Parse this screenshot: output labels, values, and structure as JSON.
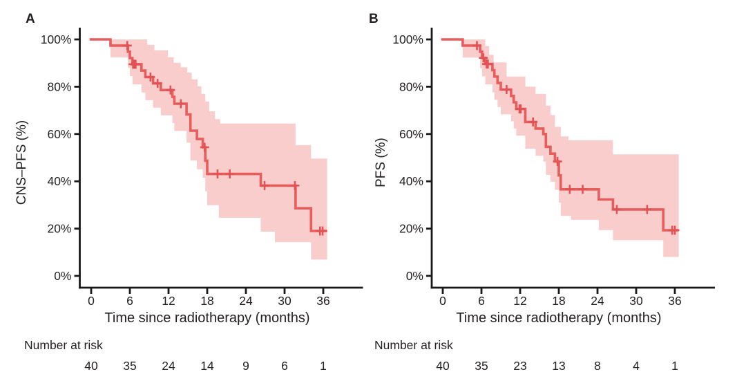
{
  "colors": {
    "curve": "#e75d5c",
    "censor": "#e25254",
    "band": "#f9cdcb",
    "axis": "#1a1a1a",
    "text": "#231f20",
    "background": "#ffffff"
  },
  "chart_data": [
    {
      "type": "line",
      "subtype": "kaplan_meier_step",
      "title": "A",
      "xlabel": "Time since radiotherapy (months)",
      "ylabel": "CNS–PFS (%)",
      "xlim": [
        0,
        42
      ],
      "ylim": [
        0,
        100
      ],
      "x_ticks": [
        0,
        6,
        12,
        18,
        24,
        30,
        36
      ],
      "y_ticks": [
        0,
        20,
        40,
        60,
        80,
        100
      ],
      "y_tick_suffix": "%",
      "grid": false,
      "legend": null,
      "series": [
        {
          "name": "CNS-PFS",
          "color": "#e75d5c",
          "ci_color": "#f9cdcb",
          "steps": [
            [
              0,
              100
            ],
            [
              3.0,
              97.4
            ],
            [
              5.7,
              94.8
            ],
            [
              6.0,
              92.1
            ],
            [
              6.4,
              89.5
            ],
            [
              7.8,
              86.8
            ],
            [
              8.4,
              84.1
            ],
            [
              9.6,
              81.4
            ],
            [
              10.8,
              78.6
            ],
            [
              12.6,
              75.7
            ],
            [
              12.9,
              72.8
            ],
            [
              14.8,
              68.3
            ],
            [
              15.4,
              61.4
            ],
            [
              16.4,
              57.9
            ],
            [
              17.3,
              54.4
            ],
            [
              17.7,
              48.7
            ],
            [
              18.0,
              43.1
            ],
            [
              26.3,
              38.2
            ],
            [
              31.7,
              28.6
            ],
            [
              34.1,
              19.0
            ]
          ],
          "end_time": 36.6,
          "censors": [
            [
              5.6,
              97.4
            ],
            [
              6.5,
              89.5
            ],
            [
              6.7,
              89.5
            ],
            [
              6.9,
              89.5
            ],
            [
              9.2,
              84.1
            ],
            [
              10.3,
              81.4
            ],
            [
              12.3,
              78.6
            ],
            [
              13.9,
              72.8
            ],
            [
              17.6,
              54.4
            ],
            [
              19.6,
              43.1
            ],
            [
              21.5,
              43.1
            ],
            [
              26.9,
              38.2
            ],
            [
              31.6,
              38.2
            ],
            [
              35.5,
              19.0
            ],
            [
              35.9,
              19.0
            ]
          ],
          "ci_start_time": 3.0,
          "ci_lower": [
            [
              3.0,
              92.4
            ],
            [
              5.7,
              88.0
            ],
            [
              6.0,
              84.5
            ],
            [
              6.4,
              81.0
            ],
            [
              7.8,
              77.5
            ],
            [
              8.4,
              74.3
            ],
            [
              9.6,
              71.1
            ],
            [
              10.8,
              67.9
            ],
            [
              12.6,
              64.6
            ],
            [
              12.9,
              61.3
            ],
            [
              14.8,
              56.3
            ],
            [
              15.4,
              48.8
            ],
            [
              16.4,
              45.1
            ],
            [
              17.3,
              41.5
            ],
            [
              17.7,
              35.7
            ],
            [
              18.0,
              29.9
            ],
            [
              19.8,
              24.6
            ],
            [
              26.3,
              18.7
            ],
            [
              28.5,
              14.3
            ],
            [
              34.1,
              6.9
            ]
          ],
          "ci_upper": [
            [
              3.0,
              100
            ],
            [
              8.7,
              97.7
            ],
            [
              9.8,
              95.4
            ],
            [
              11.9,
              92.5
            ],
            [
              12.8,
              90.1
            ],
            [
              13.9,
              88.2
            ],
            [
              14.9,
              86.0
            ],
            [
              15.6,
              83.1
            ],
            [
              16.5,
              80.2
            ],
            [
              17.1,
              77.0
            ],
            [
              17.7,
              73.7
            ],
            [
              18.3,
              69.6
            ],
            [
              19.2,
              66.3
            ],
            [
              20.0,
              64.4
            ],
            [
              31.7,
              55.3
            ],
            [
              34.1,
              49.6
            ]
          ]
        }
      ],
      "number_at_risk": {
        "label": "Number at risk",
        "times": [
          0,
          6,
          12,
          18,
          24,
          30,
          36
        ],
        "counts": [
          40,
          35,
          24,
          14,
          9,
          6,
          1
        ]
      }
    },
    {
      "type": "line",
      "subtype": "kaplan_meier_step",
      "title": "B",
      "xlabel": "Time since radiotherapy (months)",
      "ylabel": "PFS (%)",
      "xlim": [
        0,
        42
      ],
      "ylim": [
        0,
        100
      ],
      "x_ticks": [
        0,
        6,
        12,
        18,
        24,
        30,
        36
      ],
      "y_ticks": [
        0,
        20,
        40,
        60,
        80,
        100
      ],
      "y_tick_suffix": "%",
      "grid": false,
      "legend": null,
      "series": [
        {
          "name": "PFS",
          "color": "#e75d5c",
          "ci_color": "#f9cdcb",
          "steps": [
            [
              0,
              100
            ],
            [
              3.1,
              97.4
            ],
            [
              5.8,
              94.8
            ],
            [
              6.1,
              92.2
            ],
            [
              6.6,
              89.6
            ],
            [
              7.7,
              87.0
            ],
            [
              8.0,
              84.3
            ],
            [
              8.5,
              81.6
            ],
            [
              9.0,
              78.8
            ],
            [
              10.6,
              76.1
            ],
            [
              11.0,
              73.4
            ],
            [
              11.4,
              70.6
            ],
            [
              12.8,
              65.1
            ],
            [
              14.4,
              62.3
            ],
            [
              15.6,
              60.0
            ],
            [
              16.0,
              54.6
            ],
            [
              16.7,
              51.7
            ],
            [
              17.4,
              48.4
            ],
            [
              18.0,
              42.5
            ],
            [
              18.3,
              36.6
            ],
            [
              24.2,
              32.3
            ],
            [
              26.4,
              28.1
            ],
            [
              34.2,
              19.3
            ]
          ],
          "end_time": 36.6,
          "censors": [
            [
              5.3,
              97.4
            ],
            [
              6.3,
              92.2
            ],
            [
              6.8,
              89.6
            ],
            [
              7.0,
              89.6
            ],
            [
              9.9,
              78.8
            ],
            [
              11.9,
              70.6
            ],
            [
              12.1,
              70.6
            ],
            [
              14.0,
              65.1
            ],
            [
              17.8,
              48.4
            ],
            [
              19.7,
              36.6
            ],
            [
              21.7,
              36.6
            ],
            [
              27.0,
              28.1
            ],
            [
              31.7,
              28.1
            ],
            [
              35.6,
              19.3
            ],
            [
              36.0,
              19.3
            ]
          ],
          "ci_start_time": 3.1,
          "ci_lower": [
            [
              3.1,
              92.3
            ],
            [
              5.8,
              87.8
            ],
            [
              6.1,
              84.4
            ],
            [
              6.6,
              81.0
            ],
            [
              7.7,
              77.6
            ],
            [
              8.0,
              74.5
            ],
            [
              8.5,
              71.4
            ],
            [
              9.0,
              68.3
            ],
            [
              10.6,
              65.4
            ],
            [
              11.0,
              62.3
            ],
            [
              11.4,
              59.3
            ],
            [
              12.8,
              53.8
            ],
            [
              14.4,
              50.8
            ],
            [
              15.6,
              48.3
            ],
            [
              16.0,
              42.7
            ],
            [
              16.7,
              39.8
            ],
            [
              17.4,
              36.4
            ],
            [
              18.0,
              31.0
            ],
            [
              18.3,
              25.4
            ],
            [
              19.9,
              23.7
            ],
            [
              24.2,
              19.4
            ],
            [
              26.4,
              15.1
            ],
            [
              34.2,
              8.0
            ]
          ],
          "ci_upper": [
            [
              3.1,
              100
            ],
            [
              6.6,
              97.2
            ],
            [
              7.2,
              93.5
            ],
            [
              7.9,
              90.3
            ],
            [
              9.9,
              84.3
            ],
            [
              12.8,
              80.0
            ],
            [
              14.4,
              77.0
            ],
            [
              16.0,
              72.0
            ],
            [
              16.7,
              68.0
            ],
            [
              17.4,
              63.0
            ],
            [
              18.3,
              59.0
            ],
            [
              19.5,
              57.3
            ],
            [
              26.4,
              51.4
            ]
          ]
        }
      ],
      "number_at_risk": {
        "label": "Number at risk",
        "times": [
          0,
          6,
          12,
          18,
          24,
          30,
          36
        ],
        "counts": [
          40,
          35,
          23,
          13,
          8,
          4,
          1
        ]
      }
    }
  ]
}
